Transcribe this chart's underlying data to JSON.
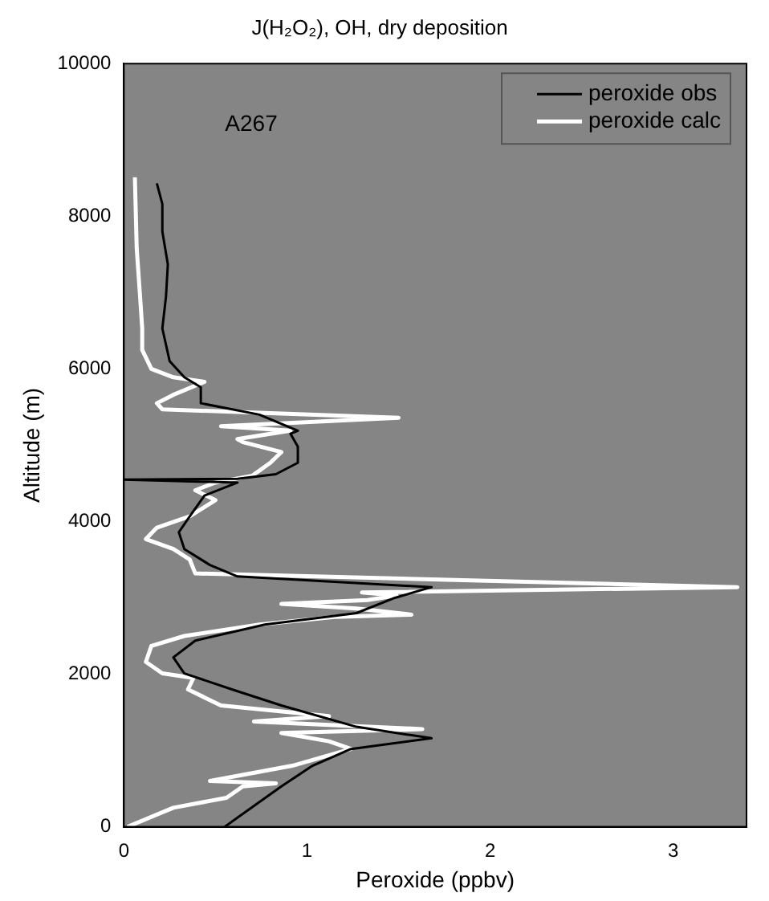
{
  "chart_data": {
    "type": "line",
    "title": "J(H₂O₂), OH, dry deposition",
    "xlabel": "Peroxide (ppbv)",
    "ylabel": "Altitude (m)",
    "annotations": [
      "A267"
    ],
    "xlim": [
      0,
      3.4
    ],
    "xticks": [
      0,
      1,
      2,
      3
    ],
    "ylim": [
      0,
      10000
    ],
    "yticks": [
      0,
      2000,
      4000,
      6000,
      8000,
      10000
    ],
    "legend": "top right",
    "marker": "none",
    "line_style": "solid",
    "series": [
      {
        "name": "peroxide obs",
        "color": "#000000",
        "x": [
          0.55,
          0.86,
          1.03,
          1.24,
          1.68,
          1.27,
          0.86,
          0.59,
          0.33,
          0.27,
          0.39,
          0.77,
          1.27,
          1.48,
          1.68,
          0.62,
          0.47,
          0.33,
          0.3,
          0.36,
          0.44,
          0.62,
          0,
          0.62,
          0.83,
          0.95,
          0.95,
          0.91,
          0.95,
          0.74,
          0.42,
          0.42,
          0.33,
          0.25,
          0.21,
          0.23,
          0.24,
          0.21,
          0.21,
          0.18
        ],
        "values": [
          0,
          530,
          800,
          1020,
          1160,
          1310,
          1590,
          1800,
          2010,
          2220,
          2440,
          2650,
          2800,
          3000,
          3140,
          3280,
          3430,
          3640,
          3860,
          4070,
          4340,
          4510,
          4550,
          4560,
          4620,
          4770,
          4980,
          5150,
          5190,
          5400,
          5550,
          5760,
          5890,
          6100,
          6530,
          6950,
          7370,
          7800,
          8160,
          8430
        ]
      },
      {
        "name": "peroxide calc",
        "color": "#ffffff",
        "x": [
          0.02,
          0.27,
          0.56,
          0.65,
          0.83,
          0.47,
          0.92,
          1.24,
          1.12,
          0.86,
          1.63,
          0.71,
          1.12,
          0.53,
          0.35,
          0.38,
          0.21,
          0.12,
          0.15,
          0.33,
          0.74,
          1.15,
          1.57,
          1.27,
          0.86,
          1.33,
          1.49,
          1.3,
          3.35,
          0.39,
          0.36,
          0.27,
          0.12,
          0.18,
          0.36,
          0.5,
          0.39,
          0.5,
          0.7,
          0.8,
          0.86,
          0.65,
          0.62,
          0.91,
          0.53,
          1.5,
          0.21,
          0.18,
          0.27,
          0.44,
          0.27,
          0.15,
          0.1,
          0.1,
          0.09,
          0.07,
          0.06
        ],
        "values": [
          0,
          250,
          380,
          530,
          570,
          600,
          800,
          1020,
          1120,
          1230,
          1280,
          1380,
          1450,
          1590,
          1800,
          1950,
          2010,
          2160,
          2370,
          2500,
          2650,
          2750,
          2780,
          2860,
          2920,
          2970,
          3030,
          3070,
          3140,
          3320,
          3500,
          3640,
          3770,
          3920,
          4070,
          4280,
          4410,
          4510,
          4600,
          4770,
          4910,
          5040,
          5080,
          5190,
          5250,
          5360,
          5470,
          5550,
          5660,
          5830,
          5890,
          6000,
          6250,
          6530,
          6890,
          7580,
          8510
        ]
      }
    ]
  }
}
